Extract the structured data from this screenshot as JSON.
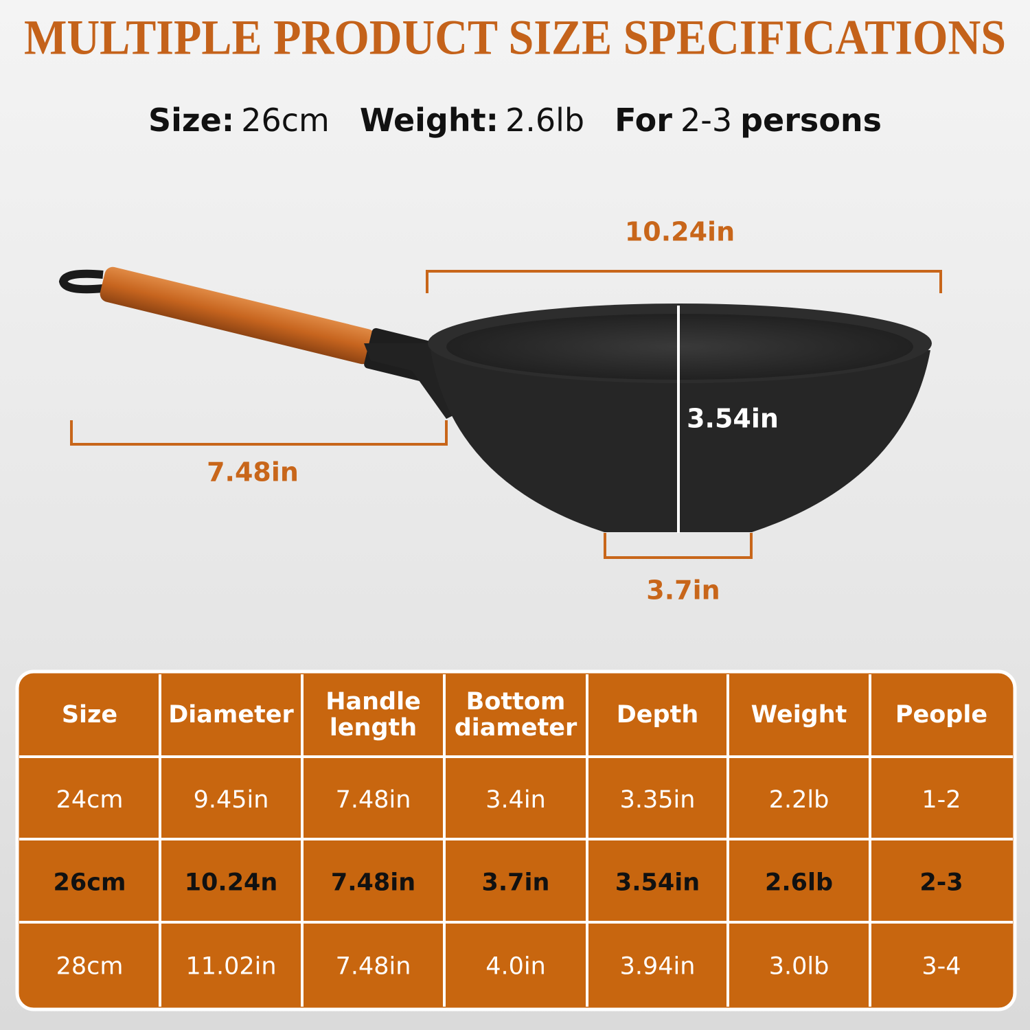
{
  "title": "MULTIPLE PRODUCT SIZE SPECIFICATIONS",
  "specs": {
    "size_label": "Size:",
    "size": "26cm",
    "weight_label": "Weight:",
    "weight": "2.6lb",
    "for_label": "For",
    "people": "2-3",
    "people_unit": "persons"
  },
  "dimensions": {
    "diameter": "10.24in",
    "handle_length": "7.48in",
    "depth": "3.54in",
    "bottom_diameter": "3.7in"
  },
  "table": {
    "headers": [
      "Size",
      "Diameter",
      "Handle length",
      "Bottom diameter",
      "Depth",
      "Weight",
      "People"
    ],
    "rows": [
      [
        "24cm",
        "9.45in",
        "7.48in",
        "3.4in",
        "3.35in",
        "2.2lb",
        "1-2"
      ],
      [
        "26cm",
        "10.24n",
        "7.48in",
        "3.7in",
        "3.54in",
        "2.6lb",
        "2-3"
      ],
      [
        "28cm",
        "11.02in",
        "7.48in",
        "4.0in",
        "3.94in",
        "3.0lb",
        "3-4"
      ]
    ]
  }
}
